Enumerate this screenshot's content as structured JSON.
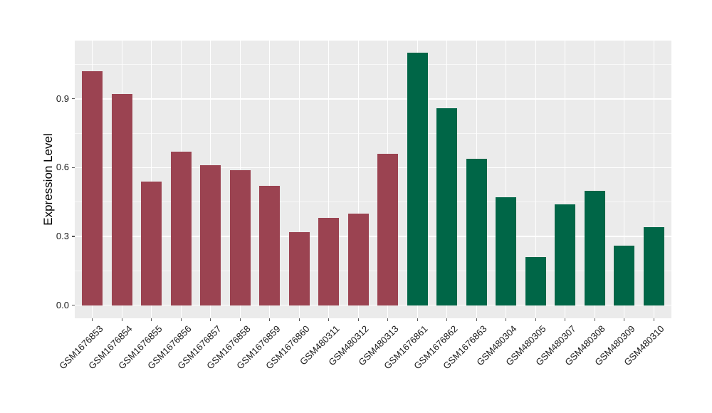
{
  "figure": {
    "background_color": "#ffffff",
    "panel_color": "#EBEBEB",
    "gridline_color": "#ffffff",
    "tick_color": "#555555",
    "text_color": "#1a1a1a"
  },
  "chart_data": {
    "type": "bar",
    "title": "",
    "xlabel": "",
    "ylabel": "Expression Level",
    "categories": [
      "GSM1676853",
      "GSM1676854",
      "GSM1676855",
      "GSM1676856",
      "GSM1676857",
      "GSM1676858",
      "GSM1676859",
      "GSM1676860",
      "GSM480311",
      "GSM480312",
      "GSM480313",
      "GSM1676861",
      "GSM1676862",
      "GSM1676863",
      "GSM480304",
      "GSM480305",
      "GSM480307",
      "GSM480308",
      "GSM480309",
      "GSM480310"
    ],
    "values": [
      1.02,
      0.92,
      0.54,
      0.67,
      0.61,
      0.59,
      0.52,
      0.32,
      0.38,
      0.4,
      0.66,
      1.1,
      0.86,
      0.64,
      0.47,
      0.21,
      0.44,
      0.5,
      0.26,
      0.34
    ],
    "bar_group": [
      1,
      1,
      1,
      1,
      1,
      1,
      1,
      1,
      1,
      1,
      1,
      2,
      2,
      2,
      2,
      2,
      2,
      2,
      2,
      2
    ],
    "group_colors": {
      "1": "#9B4351",
      "2": "#006647"
    },
    "ytick_values": [
      0.0,
      0.3,
      0.6,
      0.9
    ],
    "ytick_labels": [
      "0.0",
      "0.3",
      "0.6",
      "0.9"
    ],
    "ytick_minor_values": [
      0.15,
      0.45,
      0.75,
      1.05
    ],
    "ylim": [
      -0.0555,
      1.1555
    ],
    "grid": "on",
    "legend": "none",
    "x_labels_rotation_deg": 45
  }
}
